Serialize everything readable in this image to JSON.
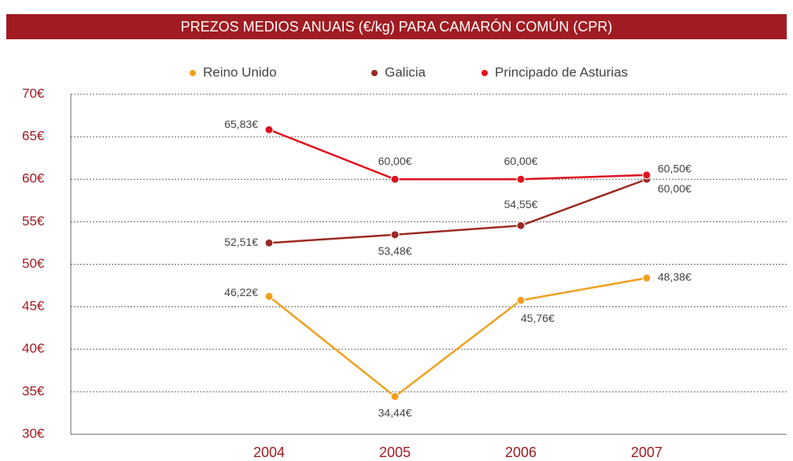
{
  "chart_data": {
    "type": "line",
    "title": "PREZOS MEDIOS ANUAIS (€/kg) PARA CAMARÓN COMÚN (CPR)",
    "categories": [
      "2004",
      "2005",
      "2006",
      "2007"
    ],
    "series": [
      {
        "name": "Reino Unido",
        "color": "#f0a01e",
        "values": [
          46.22,
          34.44,
          45.76,
          48.38
        ],
        "value_labels": [
          "46,22€",
          "34,44€",
          "45,76€",
          "48,38€"
        ]
      },
      {
        "name": "Galicia",
        "color": "#9b2a22",
        "values": [
          52.51,
          53.48,
          54.55,
          60.0
        ],
        "value_labels": [
          "52,51€",
          "53,48€",
          "54,55€",
          "60,00€"
        ]
      },
      {
        "name": "Principado de Asturias",
        "color": "#e0101e",
        "values": [
          65.83,
          60.0,
          60.0,
          60.5
        ],
        "value_labels": [
          "65,83€",
          "60,00€",
          "60,00€",
          "60,50€"
        ]
      }
    ],
    "ylim": [
      30,
      70
    ],
    "yticks": [
      {
        "value": 30,
        "label": "30€"
      },
      {
        "value": 35,
        "label": "35€"
      },
      {
        "value": 40,
        "label": "40€"
      },
      {
        "value": 45,
        "label": "45€"
      },
      {
        "value": 50,
        "label": "50€"
      },
      {
        "value": 55,
        "label": "55€"
      },
      {
        "value": 60,
        "label": "60€"
      },
      {
        "value": 65,
        "label": "65€"
      },
      {
        "value": 70,
        "label": "70€"
      }
    ],
    "grid": true
  }
}
